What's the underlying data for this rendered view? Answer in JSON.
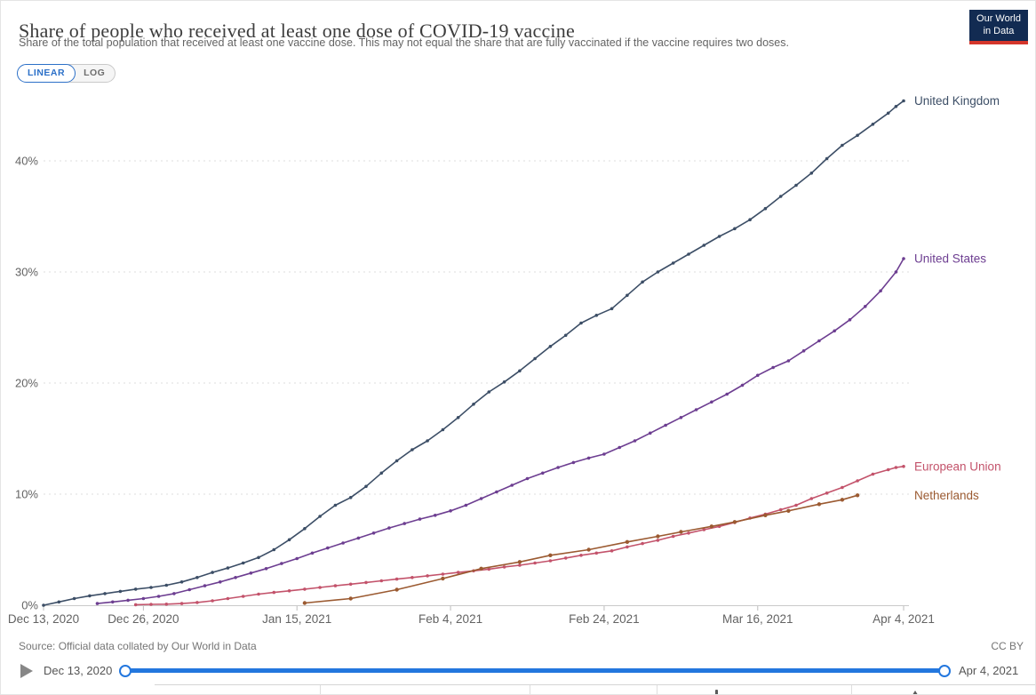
{
  "header": {
    "title": "Share of people who received at least one dose of COVID-19 vaccine",
    "subtitle": "Share of the total population that received at least one vaccine dose. This may not equal the share that are fully vaccinated if the vaccine requires two doses.",
    "logo": {
      "line1": "Our World",
      "line2": "in Data",
      "bg_color": "#122B52",
      "stripe_color": "#D4362B"
    }
  },
  "controls": {
    "linear_label": "LINEAR",
    "log_label": "LOG",
    "selected": "LINEAR",
    "accent_color": "#2C70C8"
  },
  "chart_data": {
    "type": "line",
    "title": "Share of people who received at least one dose of COVID-19 vaccine",
    "xlabel": "",
    "ylabel": "",
    "grid": true,
    "legend_position": "right-end-labels",
    "ylim": [
      0,
      46
    ],
    "x_axis": {
      "start_date": "Dec 13, 2020",
      "end_date": "Apr 4, 2021",
      "span_days": 112
    },
    "x_ticks": [
      {
        "day": 0,
        "label": "Dec 13, 2020"
      },
      {
        "day": 13,
        "label": "Dec 26, 2020"
      },
      {
        "day": 33,
        "label": "Jan 15, 2021"
      },
      {
        "day": 53,
        "label": "Feb 4, 2021"
      },
      {
        "day": 73,
        "label": "Feb 24, 2021"
      },
      {
        "day": 93,
        "label": "Mar 16, 2021"
      },
      {
        "day": 112,
        "label": "Apr 4, 2021"
      }
    ],
    "y_ticks": [
      {
        "value": 0,
        "label": "0%"
      },
      {
        "value": 10,
        "label": "10%"
      },
      {
        "value": 20,
        "label": "20%"
      },
      {
        "value": 30,
        "label": "30%"
      },
      {
        "value": 40,
        "label": "40%"
      }
    ],
    "series": [
      {
        "name": "United Kingdom",
        "color": "#3C4E66",
        "marker_radius": 1.8,
        "points": [
          [
            0,
            0
          ],
          [
            2,
            0.3
          ],
          [
            4,
            0.6
          ],
          [
            6,
            0.85
          ],
          [
            8,
            1.05
          ],
          [
            10,
            1.25
          ],
          [
            12,
            1.45
          ],
          [
            14,
            1.6
          ],
          [
            16,
            1.8
          ],
          [
            18,
            2.1
          ],
          [
            20,
            2.5
          ],
          [
            22,
            2.95
          ],
          [
            24,
            3.35
          ],
          [
            26,
            3.8
          ],
          [
            28,
            4.3
          ],
          [
            30,
            5.0
          ],
          [
            32,
            5.9
          ],
          [
            34,
            6.9
          ],
          [
            36,
            8.0
          ],
          [
            38,
            9.0
          ],
          [
            40,
            9.7
          ],
          [
            42,
            10.7
          ],
          [
            44,
            11.9
          ],
          [
            46,
            13.0
          ],
          [
            48,
            14.0
          ],
          [
            50,
            14.8
          ],
          [
            52,
            15.8
          ],
          [
            54,
            16.9
          ],
          [
            56,
            18.1
          ],
          [
            58,
            19.2
          ],
          [
            60,
            20.1
          ],
          [
            62,
            21.1
          ],
          [
            64,
            22.2
          ],
          [
            66,
            23.3
          ],
          [
            68,
            24.3
          ],
          [
            70,
            25.4
          ],
          [
            72,
            26.1
          ],
          [
            74,
            26.7
          ],
          [
            76,
            27.9
          ],
          [
            78,
            29.1
          ],
          [
            80,
            30.0
          ],
          [
            82,
            30.8
          ],
          [
            84,
            31.6
          ],
          [
            86,
            32.4
          ],
          [
            88,
            33.2
          ],
          [
            90,
            33.9
          ],
          [
            92,
            34.7
          ],
          [
            94,
            35.7
          ],
          [
            96,
            36.8
          ],
          [
            98,
            37.8
          ],
          [
            100,
            38.9
          ],
          [
            102,
            40.2
          ],
          [
            104,
            41.4
          ],
          [
            106,
            42.3
          ],
          [
            108,
            43.3
          ],
          [
            110,
            44.3
          ],
          [
            111,
            44.9
          ],
          [
            112,
            45.4
          ]
        ]
      },
      {
        "name": "United States",
        "color": "#6D3E91",
        "marker_radius": 1.8,
        "points": [
          [
            7,
            0.15
          ],
          [
            9,
            0.3
          ],
          [
            11,
            0.45
          ],
          [
            13,
            0.6
          ],
          [
            15,
            0.8
          ],
          [
            17,
            1.05
          ],
          [
            19,
            1.4
          ],
          [
            21,
            1.75
          ],
          [
            23,
            2.1
          ],
          [
            25,
            2.5
          ],
          [
            27,
            2.9
          ],
          [
            29,
            3.3
          ],
          [
            31,
            3.75
          ],
          [
            33,
            4.2
          ],
          [
            35,
            4.7
          ],
          [
            37,
            5.15
          ],
          [
            39,
            5.6
          ],
          [
            41,
            6.05
          ],
          [
            43,
            6.5
          ],
          [
            45,
            6.95
          ],
          [
            47,
            7.35
          ],
          [
            49,
            7.75
          ],
          [
            51,
            8.1
          ],
          [
            53,
            8.5
          ],
          [
            55,
            9.0
          ],
          [
            57,
            9.6
          ],
          [
            59,
            10.2
          ],
          [
            61,
            10.8
          ],
          [
            63,
            11.4
          ],
          [
            65,
            11.9
          ],
          [
            67,
            12.4
          ],
          [
            69,
            12.85
          ],
          [
            71,
            13.25
          ],
          [
            73,
            13.6
          ],
          [
            75,
            14.2
          ],
          [
            77,
            14.8
          ],
          [
            79,
            15.5
          ],
          [
            81,
            16.2
          ],
          [
            83,
            16.9
          ],
          [
            85,
            17.6
          ],
          [
            87,
            18.3
          ],
          [
            89,
            19.0
          ],
          [
            91,
            19.8
          ],
          [
            93,
            20.7
          ],
          [
            95,
            21.4
          ],
          [
            97,
            22.0
          ],
          [
            99,
            22.9
          ],
          [
            101,
            23.8
          ],
          [
            103,
            24.7
          ],
          [
            105,
            25.7
          ],
          [
            107,
            26.9
          ],
          [
            109,
            28.3
          ],
          [
            111,
            30.0
          ],
          [
            112,
            31.2
          ]
        ]
      },
      {
        "name": "European Union",
        "color": "#C3536B",
        "marker_radius": 1.8,
        "points": [
          [
            12,
            0.05
          ],
          [
            14,
            0.08
          ],
          [
            16,
            0.1
          ],
          [
            18,
            0.15
          ],
          [
            20,
            0.25
          ],
          [
            22,
            0.4
          ],
          [
            24,
            0.6
          ],
          [
            26,
            0.8
          ],
          [
            28,
            1.0
          ],
          [
            30,
            1.15
          ],
          [
            32,
            1.3
          ],
          [
            34,
            1.45
          ],
          [
            36,
            1.6
          ],
          [
            38,
            1.75
          ],
          [
            40,
            1.9
          ],
          [
            42,
            2.05
          ],
          [
            44,
            2.2
          ],
          [
            46,
            2.35
          ],
          [
            48,
            2.5
          ],
          [
            50,
            2.65
          ],
          [
            52,
            2.8
          ],
          [
            54,
            2.95
          ],
          [
            56,
            3.1
          ],
          [
            58,
            3.25
          ],
          [
            60,
            3.45
          ],
          [
            62,
            3.6
          ],
          [
            64,
            3.8
          ],
          [
            66,
            4.0
          ],
          [
            68,
            4.25
          ],
          [
            70,
            4.5
          ],
          [
            72,
            4.7
          ],
          [
            74,
            4.9
          ],
          [
            76,
            5.25
          ],
          [
            78,
            5.55
          ],
          [
            80,
            5.85
          ],
          [
            82,
            6.2
          ],
          [
            84,
            6.5
          ],
          [
            86,
            6.8
          ],
          [
            88,
            7.1
          ],
          [
            90,
            7.45
          ],
          [
            92,
            7.85
          ],
          [
            94,
            8.2
          ],
          [
            96,
            8.6
          ],
          [
            98,
            9.0
          ],
          [
            100,
            9.6
          ],
          [
            102,
            10.1
          ],
          [
            104,
            10.6
          ],
          [
            106,
            11.2
          ],
          [
            108,
            11.8
          ],
          [
            110,
            12.2
          ],
          [
            111,
            12.4
          ],
          [
            112,
            12.5
          ]
        ]
      },
      {
        "name": "Netherlands",
        "color": "#9B5A31",
        "marker_radius": 2.2,
        "points": [
          [
            34,
            0.2
          ],
          [
            40,
            0.6
          ],
          [
            46,
            1.4
          ],
          [
            52,
            2.4
          ],
          [
            57,
            3.3
          ],
          [
            62,
            3.9
          ],
          [
            66,
            4.5
          ],
          [
            71,
            5.0
          ],
          [
            76,
            5.7
          ],
          [
            80,
            6.2
          ],
          [
            83,
            6.6
          ],
          [
            87,
            7.1
          ],
          [
            90,
            7.5
          ],
          [
            94,
            8.1
          ],
          [
            97,
            8.5
          ],
          [
            101,
            9.1
          ],
          [
            104,
            9.5
          ],
          [
            106,
            9.9
          ]
        ]
      }
    ]
  },
  "footer": {
    "source": "Source: Official data collated by Our World in Data",
    "license": "CC BY"
  },
  "timeline": {
    "start_label": "Dec 13, 2020",
    "end_label": "Apr 4, 2021",
    "track_color": "#2377DE"
  }
}
